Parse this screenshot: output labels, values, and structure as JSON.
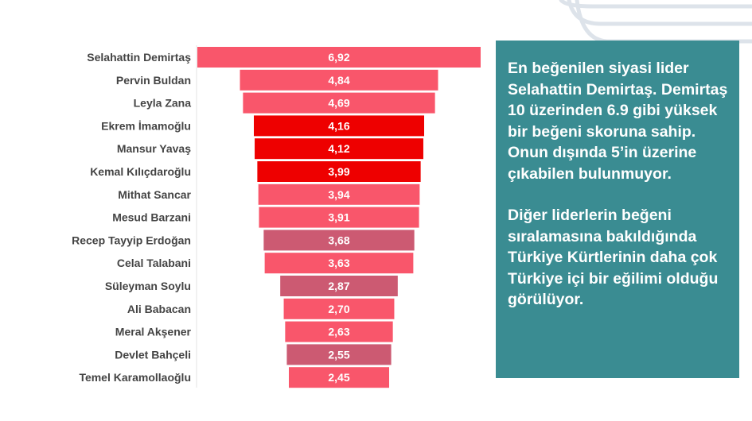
{
  "chart_data": {
    "type": "bar",
    "orientation": "horizontal",
    "style": "funnel (centered bars)",
    "categories": [
      "Selahattin Demirtaş",
      "Pervin Buldan",
      "Leyla Zana",
      "Ekrem İmamoğlu",
      "Mansur Yavaş",
      "Kemal Kılıçdaroğlu",
      "Mithat Sancar",
      "Mesud Barzani",
      "Recep Tayyip Erdoğan",
      "Celal Talabani",
      "Süleyman Soylu",
      "Ali Babacan",
      "Meral Akşener",
      "Devlet Bahçeli",
      "Temel Karamollaoğlu"
    ],
    "values": [
      6.92,
      4.84,
      4.69,
      4.16,
      4.12,
      3.99,
      3.94,
      3.91,
      3.68,
      3.63,
      2.87,
      2.7,
      2.63,
      2.55,
      2.45
    ],
    "value_labels": [
      "6,92",
      "4,84",
      "4,69",
      "4,16",
      "4,12",
      "3,99",
      "3,94",
      "3,91",
      "3,68",
      "3,63",
      "2,87",
      "2,70",
      "2,63",
      "2,55",
      "2,45"
    ],
    "bar_colors": [
      "#f9566b",
      "#f9566b",
      "#f9566b",
      "#ee0000",
      "#ee0000",
      "#ee0000",
      "#f9566b",
      "#f9566b",
      "#cc5a72",
      "#f9566b",
      "#cc5a72",
      "#f9566b",
      "#f9566b",
      "#cc5a72",
      "#f9566b"
    ],
    "xlim": [
      0,
      6.92
    ],
    "title": "",
    "xlabel": "",
    "ylabel": "",
    "grid": false,
    "legend": "none"
  },
  "callout": {
    "paragraph1": "En beğenilen siyasi lider Selahattin Demirtaş. Demirtaş 10 üzerinden 6.9 gibi yüksek bir beğeni skoruna sahip. Onun dışında 5’in üzerine çıkabilen bulunmuyor.",
    "paragraph2": "Diğer liderlerin beğeni sıralamasına bakıldığında Türkiye Kürtlerinin daha çok Türkiye içi bir eğilimi olduğu görülüyor.",
    "background": "#3a8c92"
  },
  "decoration": {
    "line_color": "#dde3ea"
  }
}
